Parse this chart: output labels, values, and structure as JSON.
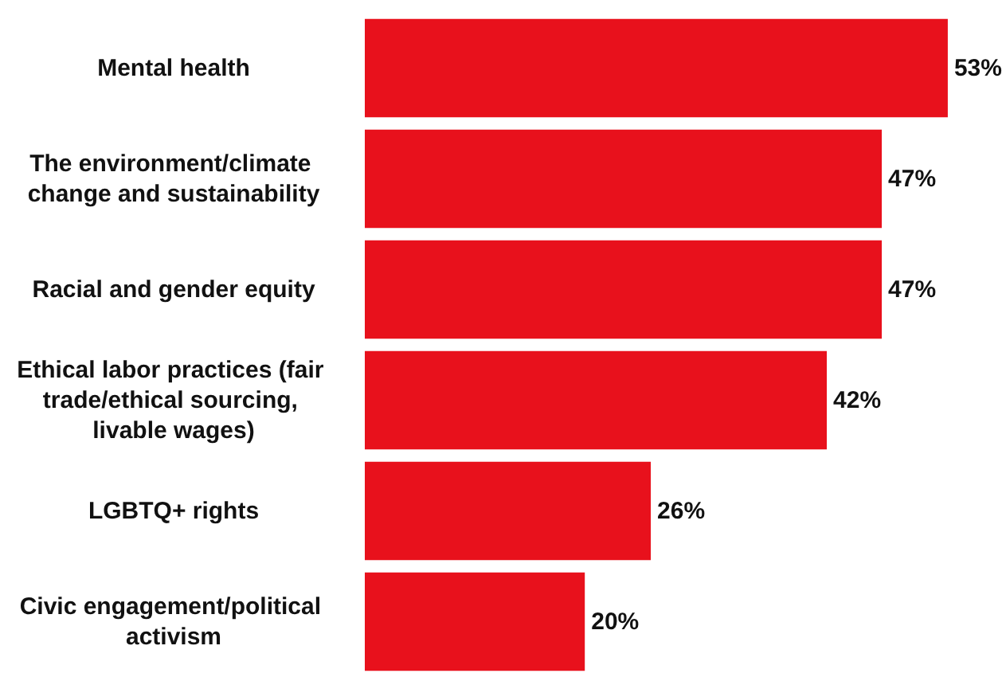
{
  "chart_data": {
    "type": "bar",
    "orientation": "horizontal",
    "categories": [
      "Mental health",
      "The environment/climate change and sustainability",
      "Racial and gender equity",
      "Ethical labor practices (fair trade/ethical sourcing, livable wages)",
      "LGBTQ+ rights",
      "Civic engagement/political activism"
    ],
    "values": [
      53,
      47,
      47,
      42,
      26,
      20
    ],
    "value_labels": [
      "53%",
      "47%",
      "47%",
      "42%",
      "26%",
      "20%"
    ],
    "color": "#e8111c"
  }
}
